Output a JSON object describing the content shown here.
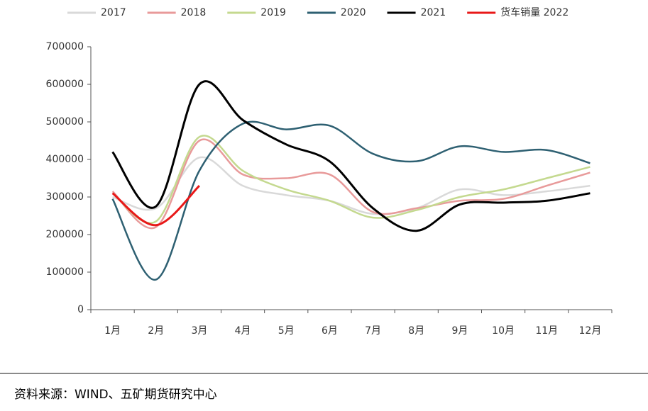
{
  "chart_data": {
    "type": "line",
    "categories": [
      "1月",
      "2月",
      "3月",
      "4月",
      "5月",
      "6月",
      "7月",
      "8月",
      "9月",
      "10月",
      "11月",
      "12月"
    ],
    "series": [
      {
        "name": "2017",
        "color": "#d9d9d9",
        "values": [
          300000,
          270000,
          405000,
          330000,
          305000,
          290000,
          255000,
          270000,
          320000,
          305000,
          315000,
          330000
        ]
      },
      {
        "name": "2018",
        "color": "#e89a9a",
        "values": [
          315000,
          220000,
          450000,
          360000,
          350000,
          360000,
          260000,
          270000,
          290000,
          295000,
          330000,
          365000
        ]
      },
      {
        "name": "2019",
        "color": "#c4d98f",
        "values": [
          310000,
          235000,
          460000,
          370000,
          320000,
          290000,
          245000,
          265000,
          300000,
          320000,
          350000,
          380000
        ]
      },
      {
        "name": "2020",
        "color": "#2e6072",
        "values": [
          295000,
          80000,
          370000,
          495000,
          480000,
          490000,
          415000,
          395000,
          435000,
          420000,
          425000,
          390000
        ]
      },
      {
        "name": "2021",
        "color": "#000000",
        "values": [
          420000,
          275000,
          600000,
          505000,
          440000,
          395000,
          270000,
          210000,
          280000,
          285000,
          290000,
          310000
        ]
      },
      {
        "name": "货车销量 2022",
        "color": "#e81818",
        "values": [
          310000,
          225000,
          330000,
          null,
          null,
          null,
          null,
          null,
          null,
          null,
          null,
          null
        ]
      }
    ],
    "ylim": [
      0,
      700000
    ],
    "yticks": [
      0,
      100000,
      200000,
      300000,
      400000,
      500000,
      600000,
      700000
    ],
    "source": "资料来源：WIND、五矿期货研究中心"
  }
}
